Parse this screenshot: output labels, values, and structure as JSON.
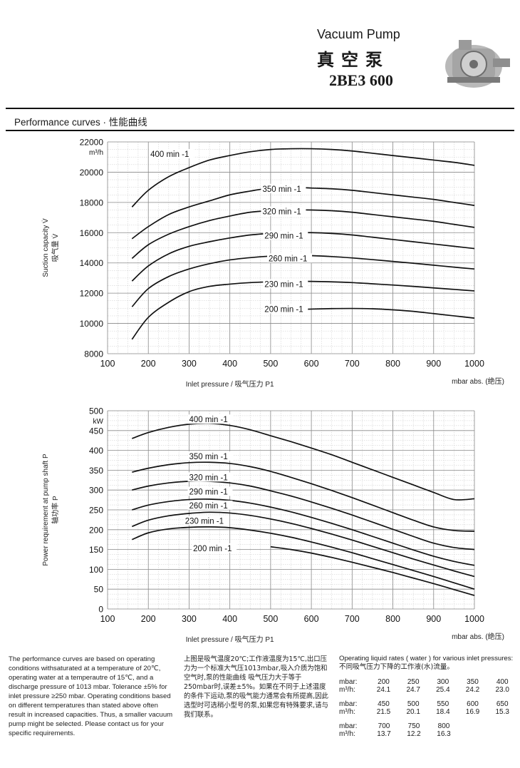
{
  "header": {
    "title_en": "Vacuum Pump",
    "title_zh": "真空泵",
    "model": "2BE3 600",
    "section_title": "Performance curves · 性能曲线"
  },
  "chart_data": [
    {
      "type": "line",
      "name": "suction",
      "ylabel": "Suction capacity V̇",
      "ylabel_zh": "吸气量 V̇",
      "yunit": "m³/h",
      "xlabel": "Inlet pressure / 吸气压力 P1",
      "xunit": "mbar abs. (绝压)",
      "xlim": [
        100,
        1000
      ],
      "ylim": [
        8000,
        22000
      ],
      "xticks": [
        100,
        200,
        300,
        400,
        500,
        600,
        700,
        800,
        900,
        1000
      ],
      "yticks": [
        8000,
        10000,
        12000,
        14000,
        16000,
        18000,
        20000,
        22000
      ],
      "grid": true,
      "series": [
        {
          "name": "400 min -1",
          "label_at": [
            205,
            21200
          ],
          "x": [
            160,
            200,
            250,
            300,
            350,
            400,
            450,
            500,
            550,
            600,
            650,
            700,
            750,
            800,
            850,
            900,
            950,
            1000
          ],
          "y": [
            17700,
            18800,
            19700,
            20300,
            20800,
            21100,
            21350,
            21500,
            21550,
            21550,
            21500,
            21400,
            21250,
            21100,
            20950,
            20800,
            20650,
            20450
          ]
        },
        {
          "name": "350 min -1",
          "label_at": [
            480,
            18900
          ],
          "x": [
            160,
            200,
            250,
            300,
            350,
            400,
            450,
            500,
            550,
            600,
            650,
            700,
            750,
            800,
            850,
            900,
            950,
            1000
          ],
          "y": [
            15600,
            16400,
            17200,
            17700,
            18100,
            18500,
            18750,
            18950,
            19000,
            18950,
            18900,
            18800,
            18650,
            18500,
            18350,
            18200,
            18000,
            17800
          ]
        },
        {
          "name": "320 min -1",
          "label_at": [
            480,
            17400
          ],
          "x": [
            160,
            200,
            250,
            300,
            350,
            400,
            450,
            500,
            550,
            600,
            650,
            700,
            750,
            800,
            850,
            900,
            950,
            1000
          ],
          "y": [
            14300,
            15200,
            15900,
            16400,
            16800,
            17100,
            17350,
            17450,
            17500,
            17500,
            17450,
            17350,
            17200,
            17050,
            16900,
            16750,
            16550,
            16350
          ]
        },
        {
          "name": "290 min -1",
          "label_at": [
            485,
            15800
          ],
          "x": [
            160,
            200,
            250,
            300,
            350,
            400,
            450,
            500,
            550,
            600,
            650,
            700,
            750,
            800,
            850,
            900,
            950,
            1000
          ],
          "y": [
            12800,
            13800,
            14600,
            15100,
            15400,
            15650,
            15850,
            15950,
            16000,
            16000,
            15950,
            15850,
            15700,
            15550,
            15400,
            15250,
            15100,
            14950
          ]
        },
        {
          "name": "260 min -1",
          "label_at": [
            495,
            14300
          ],
          "x": [
            160,
            200,
            250,
            300,
            350,
            400,
            450,
            500,
            550,
            600,
            650,
            700,
            750,
            800,
            850,
            900,
            950,
            1000
          ],
          "y": [
            11100,
            12300,
            13100,
            13600,
            13950,
            14200,
            14350,
            14450,
            14500,
            14480,
            14420,
            14330,
            14220,
            14100,
            13980,
            13850,
            13720,
            13600
          ]
        },
        {
          "name": "230 min -1",
          "label_at": [
            485,
            12600
          ],
          "x": [
            160,
            200,
            250,
            300,
            350,
            400,
            450,
            500,
            550,
            600,
            650,
            700,
            750,
            800,
            850,
            900,
            950,
            1000
          ],
          "y": [
            8950,
            10400,
            11400,
            12100,
            12450,
            12600,
            12700,
            12750,
            12780,
            12780,
            12750,
            12700,
            12620,
            12540,
            12450,
            12350,
            12250,
            12150
          ]
        },
        {
          "name": "200 min -1",
          "label_at": [
            485,
            10950
          ],
          "x": [
            500,
            550,
            600,
            650,
            700,
            750,
            800,
            850,
            900,
            950,
            1000
          ],
          "y": [
            10750,
            10900,
            10950,
            10980,
            10990,
            10970,
            10900,
            10800,
            10650,
            10500,
            10350
          ]
        }
      ]
    },
    {
      "type": "line",
      "name": "power",
      "ylabel": "Power requirement at pump shaft P",
      "ylabel_zh": "轴功率 P",
      "yunit": "kW",
      "xlabel": "Inlet pressure / 吸气压力 P1",
      "xunit": "mbar abs. (绝压)",
      "xlim": [
        100,
        1000
      ],
      "ylim": [
        0,
        500
      ],
      "xticks": [
        100,
        200,
        300,
        400,
        500,
        600,
        700,
        800,
        900,
        1000
      ],
      "yticks": [
        0,
        50,
        100,
        150,
        200,
        250,
        300,
        350,
        400,
        450,
        500
      ],
      "grid": true,
      "series": [
        {
          "name": "400 min -1",
          "label_at": [
            300,
            478
          ],
          "x": [
            160,
            200,
            250,
            300,
            350,
            400,
            450,
            500,
            550,
            600,
            650,
            700,
            750,
            800,
            850,
            900,
            950,
            1000
          ],
          "y": [
            430,
            445,
            458,
            466,
            468,
            463,
            452,
            437,
            422,
            406,
            389,
            370,
            351,
            332,
            313,
            294,
            276,
            278
          ]
        },
        {
          "name": "350 min -1",
          "label_at": [
            300,
            385
          ],
          "x": [
            160,
            200,
            250,
            300,
            350,
            400,
            450,
            500,
            550,
            600,
            650,
            700,
            750,
            800,
            850,
            900,
            950,
            1000
          ],
          "y": [
            345,
            355,
            364,
            369,
            370,
            367,
            359,
            347,
            332,
            316,
            299,
            281,
            262,
            243,
            224,
            207,
            198,
            196
          ]
        },
        {
          "name": "320 min -1",
          "label_at": [
            300,
            332
          ],
          "x": [
            160,
            200,
            250,
            300,
            350,
            400,
            450,
            500,
            550,
            600,
            650,
            700,
            750,
            800,
            850,
            900,
            950,
            1000
          ],
          "y": [
            300,
            310,
            318,
            322,
            322,
            318,
            310,
            298,
            285,
            270,
            254,
            237,
            219,
            201,
            183,
            166,
            155,
            150
          ]
        },
        {
          "name": "290 min -1",
          "label_at": [
            300,
            296
          ],
          "x": [
            160,
            200,
            250,
            300,
            350,
            400,
            450,
            500,
            550,
            600,
            650,
            700,
            750,
            800,
            850,
            900,
            950,
            1000
          ],
          "y": [
            250,
            262,
            271,
            276,
            277,
            274,
            267,
            257,
            245,
            231,
            216,
            200,
            183,
            166,
            149,
            133,
            120,
            110
          ]
        },
        {
          "name": "260 min -1",
          "label_at": [
            300,
            261
          ],
          "x": [
            160,
            200,
            250,
            300,
            350,
            400,
            450,
            500,
            550,
            600,
            650,
            700,
            750,
            800,
            850,
            900,
            950,
            1000
          ],
          "y": [
            208,
            224,
            235,
            241,
            244,
            242,
            236,
            227,
            216,
            203,
            189,
            174,
            158,
            142,
            126,
            111,
            96,
            82
          ]
        },
        {
          "name": "230 min -1",
          "label_at": [
            290,
            222
          ],
          "x": [
            160,
            200,
            250,
            300,
            350,
            400,
            450,
            500,
            550,
            600,
            650,
            700,
            750,
            800,
            850,
            900,
            950,
            1000
          ],
          "y": [
            175,
            192,
            202,
            206,
            207,
            205,
            199,
            191,
            181,
            169,
            156,
            142,
            127,
            112,
            97,
            82,
            66,
            50
          ]
        },
        {
          "name": "200 min -1",
          "label_at": [
            310,
            153
          ],
          "x": [
            500,
            550,
            600,
            650,
            700,
            750,
            800,
            850,
            900,
            950,
            1000
          ],
          "y": [
            157,
            150,
            141,
            130,
            118,
            105,
            92,
            78,
            64,
            49,
            34
          ]
        }
      ]
    }
  ],
  "notes": {
    "en": "The performance curves are based on operating conditions withsaturated at a temperature of 20℃, operating water at a temperautre of 15℃, and a discharge pressure of 1013 mbar. Tolerance ±5% for inlet pressure ≥250 mbar. Operating conditions based on different temperatures than stated above often result in increased capacities. Thus, a smaller vacuum pump might be selected. Please contact us for your specific requirements.",
    "zh": "上图是吸气温度20℃;工作液温度为15℃,出口压力为一个标准大气压1013mbar,吸入介质为饱和空气时,泵的性能曲线 吸气压力大于等于250mbar时,误差±5%。如果在不同于上述温度的条件下运动,泵的吸气能力通常会有所提高,因此选型时可选稍小型号的泵,如果您有特殊要求,请与我们联系。"
  },
  "rates": {
    "title_en": "Operating liquid rates ( water ) for various inlet pressures:",
    "title_zh": "不同吸气压力下降的工作液(水)流量。",
    "mbar_label": "mbar:",
    "rate_label": "m³/h:",
    "groups": [
      {
        "mbar": [
          "200",
          "250",
          "300",
          "350",
          "400"
        ],
        "m3h": [
          "24.1",
          "24.7",
          "25.4",
          "24.2",
          "23.0"
        ]
      },
      {
        "mbar": [
          "450",
          "500",
          "550",
          "600",
          "650"
        ],
        "m3h": [
          "21.5",
          "20.1",
          "18.4",
          "16.9",
          "15.3"
        ]
      },
      {
        "mbar": [
          "700",
          "750",
          "800"
        ],
        "m3h": [
          "13.7",
          "12.2",
          "16.3"
        ]
      }
    ]
  },
  "colors": {
    "curve": "#111111",
    "grid_major": "#8a8a8a",
    "grid_minor": "#c9c9c9",
    "rule": "#111111"
  }
}
